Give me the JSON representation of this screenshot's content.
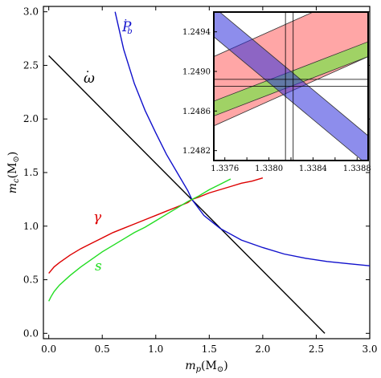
{
  "chart_data": {
    "type": "line",
    "xlabel": "m_p(M_⊙)",
    "ylabel": "m_c(M_⊙)",
    "xlim": [
      -0.05,
      3.0
    ],
    "ylim": [
      -0.05,
      3.05
    ],
    "xticks": [
      "0.0",
      "0.5",
      "1.0",
      "1.5",
      "2.0",
      "2.5",
      "3.0"
    ],
    "yticks": [
      "0.0",
      "0.5",
      "1.0",
      "1.5",
      "2.0",
      "2.5",
      "3.0"
    ],
    "grid": false,
    "colors": {
      "omega": "#000000",
      "pb": "#1010cc",
      "gamma": "#dd0000",
      "s": "#22dd22"
    },
    "series": [
      {
        "id": "omega",
        "name": "ω̇",
        "color": "#000000",
        "x": [
          0.0,
          2.58
        ],
        "y": [
          2.59,
          0.0
        ]
      },
      {
        "id": "pb",
        "name": "Ṗb",
        "color": "#1010cc",
        "x": [
          0.62,
          0.7,
          0.8,
          0.9,
          1.0,
          1.1,
          1.2,
          1.3,
          1.338,
          1.45,
          1.6,
          1.8,
          2.0,
          2.2,
          2.4,
          2.6,
          2.8,
          3.0
        ],
        "y": [
          3.0,
          2.65,
          2.33,
          2.08,
          1.87,
          1.67,
          1.5,
          1.33,
          1.249,
          1.1,
          0.98,
          0.87,
          0.8,
          0.74,
          0.7,
          0.67,
          0.65,
          0.63
        ]
      },
      {
        "id": "gamma",
        "name": "γ",
        "color": "#dd0000",
        "x": [
          0.0,
          0.05,
          0.1,
          0.2,
          0.3,
          0.4,
          0.5,
          0.6,
          0.7,
          0.8,
          0.9,
          1.0,
          1.1,
          1.2,
          1.3,
          1.338,
          1.4,
          1.5,
          1.6,
          1.7,
          1.8,
          1.9,
          2.0
        ],
        "y": [
          0.56,
          0.62,
          0.66,
          0.73,
          0.79,
          0.84,
          0.89,
          0.94,
          0.98,
          1.02,
          1.06,
          1.1,
          1.14,
          1.18,
          1.22,
          1.249,
          1.27,
          1.31,
          1.34,
          1.37,
          1.4,
          1.42,
          1.45
        ]
      },
      {
        "id": "s",
        "name": "s",
        "color": "#22dd22",
        "x": [
          0.0,
          0.02,
          0.05,
          0.1,
          0.2,
          0.3,
          0.4,
          0.5,
          0.6,
          0.7,
          0.8,
          0.9,
          1.0,
          1.1,
          1.2,
          1.3,
          1.338,
          1.4,
          1.5,
          1.6,
          1.7
        ],
        "y": [
          0.3,
          0.34,
          0.39,
          0.45,
          0.54,
          0.62,
          0.69,
          0.76,
          0.82,
          0.88,
          0.94,
          0.99,
          1.05,
          1.11,
          1.17,
          1.23,
          1.249,
          1.28,
          1.34,
          1.39,
          1.44
        ]
      }
    ],
    "inset": {
      "xlim": [
        1.3375,
        1.3389
      ],
      "ylim": [
        1.2481,
        1.2496
      ],
      "xticks": [
        "1.3376",
        "1.3378",
        "1.3380",
        "1.3382",
        "1.3384",
        "1.3386",
        "1.3388"
      ],
      "xtick_values": [
        1.3376,
        1.3378,
        1.338,
        1.3382,
        1.3384,
        1.3386,
        1.3388
      ],
      "xtick_labels_shown": [
        "1.3376",
        "",
        "1.3380",
        "",
        "1.3384",
        "",
        "1.3388"
      ],
      "yticks": [
        "1.2482",
        "1.2486",
        "1.2490",
        "1.2494"
      ],
      "ytick_values": [
        1.2482,
        1.2486,
        1.249,
        1.2494
      ],
      "bands": [
        {
          "id": "gamma-band",
          "color": "#ff8080",
          "opacity": 0.7,
          "lower": [
            [
              1.3375,
              1.24845
            ],
            [
              1.3389,
              1.24915
            ]
          ],
          "upper": [
            [
              1.3375,
              1.24915
            ],
            [
              1.3389,
              1.24985
            ]
          ]
        },
        {
          "id": "s-band",
          "color": "#88dd55",
          "opacity": 0.8,
          "lower": [
            [
              1.3375,
              1.24855
            ],
            [
              1.3389,
              1.24915
            ]
          ],
          "upper": [
            [
              1.3375,
              1.2487
            ],
            [
              1.3389,
              1.2493
            ]
          ]
        },
        {
          "id": "omega-band",
          "color": "#3030dd",
          "opacity": 0.55,
          "lower": [
            [
              1.3375,
              1.24935
            ],
            [
              1.3389,
              1.24805
            ]
          ],
          "upper": [
            [
              1.3375,
              1.24965
            ],
            [
              1.3389,
              1.24835
            ]
          ]
        }
      ],
      "crosshair": {
        "x_lines": [
          1.33815,
          1.33822
        ],
        "y_lines": [
          1.24885,
          1.24892
        ]
      }
    }
  }
}
